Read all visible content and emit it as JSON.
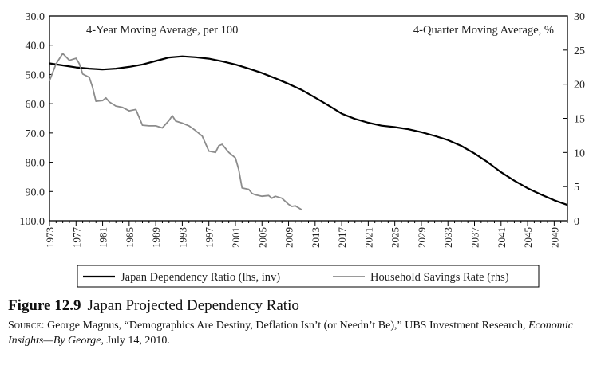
{
  "chart_data": {
    "type": "line",
    "panel_labels": {
      "left": "4-Year Moving Average, per 100",
      "right": "4-Quarter Moving Average, %"
    },
    "x_ticks": [
      "1973",
      "1977",
      "1981",
      "1985",
      "1989",
      "1993",
      "1997",
      "2001",
      "2005",
      "2009",
      "2013",
      "2017",
      "2021",
      "2025",
      "2029",
      "2033",
      "2037",
      "2041",
      "2045",
      "2049"
    ],
    "xlim": [
      1973,
      2051
    ],
    "y_left": {
      "ticks": [
        "30.0",
        "40.0",
        "50.0",
        "60.0",
        "70.0",
        "80.0",
        "90.0",
        "100.0"
      ],
      "range": [
        30,
        100
      ],
      "inverted": true
    },
    "y_right": {
      "ticks": [
        "0",
        "5",
        "10",
        "15",
        "20",
        "25",
        "30"
      ],
      "range": [
        0,
        30
      ]
    },
    "grid": false,
    "legend_position": "bottom",
    "series": [
      {
        "name": "Japan Dependency Ratio (lhs, inv)",
        "axis": "left",
        "color": "#000000",
        "x": [
          1973,
          1975,
          1977,
          1979,
          1981,
          1983,
          1985,
          1987,
          1989,
          1991,
          1993,
          1995,
          1997,
          1999,
          2001,
          2003,
          2005,
          2007,
          2009,
          2011,
          2013,
          2015,
          2017,
          2019,
          2021,
          2023,
          2025,
          2027,
          2029,
          2031,
          2033,
          2035,
          2037,
          2039,
          2041,
          2043,
          2045,
          2047,
          2049,
          2051
        ],
        "values": [
          46.2,
          46.9,
          47.6,
          48.0,
          48.3,
          48.0,
          47.4,
          46.6,
          45.4,
          44.2,
          43.8,
          44.1,
          44.6,
          45.5,
          46.6,
          48.0,
          49.5,
          51.3,
          53.2,
          55.3,
          57.9,
          60.6,
          63.4,
          65.2,
          66.5,
          67.5,
          68.0,
          68.7,
          69.7,
          71.0,
          72.4,
          74.4,
          77.0,
          80.0,
          83.4,
          86.3,
          88.9,
          91.0,
          93.0,
          94.6
        ]
      },
      {
        "name": "Household Savings Rate (rhs)",
        "axis": "right",
        "color": "#8c8c8c",
        "x": [
          1973,
          1974,
          1975,
          1975.5,
          1976,
          1977,
          1977.5,
          1978,
          1979,
          1979.5,
          1980,
          1981,
          1981.5,
          1982,
          1983,
          1984,
          1985,
          1985.5,
          1986,
          1987,
          1988,
          1989,
          1990,
          1991,
          1991.5,
          1992,
          1993,
          1994,
          1995,
          1995.5,
          1996,
          1997,
          1998,
          1998.5,
          1999,
          2000,
          2001,
          2001.5,
          2002,
          2003,
          2003.5,
          2004,
          2005,
          2006,
          2006.5,
          2007,
          2008,
          2009,
          2009.5,
          2010,
          2011
        ],
        "values": [
          20.5,
          23.0,
          24.5,
          24.0,
          23.5,
          23.8,
          23.0,
          21.5,
          21.0,
          19.5,
          17.5,
          17.6,
          18.0,
          17.4,
          16.8,
          16.6,
          16.1,
          16.2,
          16.3,
          14.0,
          13.9,
          13.9,
          13.6,
          14.7,
          15.4,
          14.6,
          14.3,
          13.9,
          13.2,
          12.8,
          12.4,
          10.2,
          10.0,
          11.0,
          11.2,
          10.0,
          9.2,
          7.5,
          4.8,
          4.6,
          4.0,
          3.8,
          3.6,
          3.7,
          3.3,
          3.6,
          3.3,
          2.4,
          2.1,
          2.2,
          1.6
        ]
      }
    ]
  },
  "caption": {
    "figure_label": "Figure 12.9",
    "figure_title": "Japan Projected Dependency Ratio",
    "source_label": "Source:",
    "source_text_1": " George Magnus, “Demographics Are Destiny, Deflation Isn’t (or Needn’t Be),” UBS Investment Research, ",
    "source_italic": "Economic Insights—By George",
    "source_text_2": ", July 14, 2010."
  }
}
